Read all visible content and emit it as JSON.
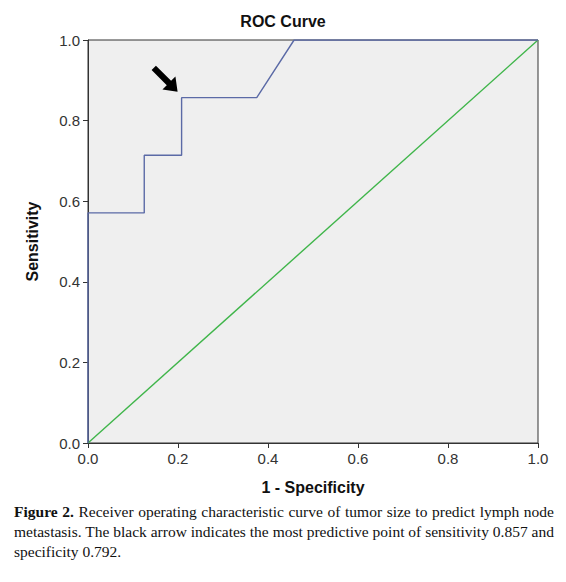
{
  "chart_data": {
    "type": "line",
    "title": "ROC Curve",
    "x_label": "1 - Specificity",
    "y_label": "Sensitivity",
    "series": [
      {
        "color": "#5b6aa6",
        "x": [
          0,
          0,
          0.125,
          0.125,
          0.208,
          0.208,
          0.375,
          0.458,
          1
        ],
        "values": [
          0,
          0.571,
          0.571,
          0.714,
          0.714,
          0.857,
          0.857,
          1,
          1
        ]
      },
      {
        "color": "#3fb54a",
        "x": [
          0,
          1
        ],
        "values": [
          0,
          1
        ]
      }
    ],
    "xlim": [
      0,
      1
    ],
    "ylim": [
      0,
      1
    ],
    "xticks": [
      {
        "value": 0,
        "label": "0.0"
      },
      {
        "value": 0.2,
        "label": "0.2"
      },
      {
        "value": 0.4,
        "label": "0.4"
      },
      {
        "value": 0.6,
        "label": "0.6"
      },
      {
        "value": 0.8,
        "label": "0.8"
      },
      {
        "value": 1,
        "label": "1.0"
      }
    ],
    "yticks": [
      {
        "value": 0,
        "label": "0.0"
      },
      {
        "value": 0.2,
        "label": "0.2"
      },
      {
        "value": 0.4,
        "label": "0.4"
      },
      {
        "value": 0.6,
        "label": "0.6"
      },
      {
        "value": 0.8,
        "label": "0.8"
      },
      {
        "value": 1,
        "label": "1.0"
      }
    ],
    "grid": false,
    "arrow_point": [
      0.208,
      0.857
    ],
    "caption": {
      "label": "Figure 2.",
      "text": "Receiver operating characteristic curve of tumor size to predict lymph node metastasis. The black arrow indicates the most predictive point of sensitivity 0.857 and specificity 0.792."
    }
  }
}
